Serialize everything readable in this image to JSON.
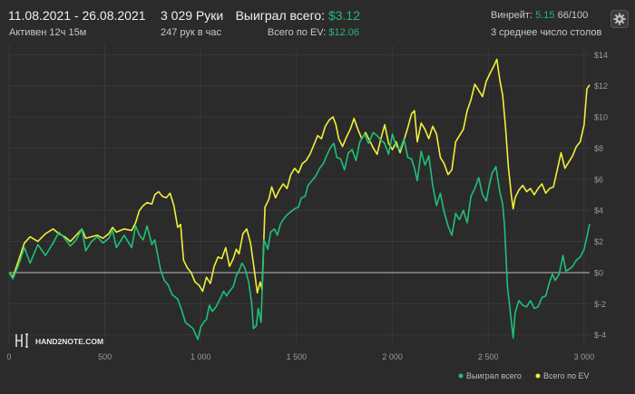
{
  "header": {
    "date_range": "11.08.2021 - 26.08.2021",
    "active_time": "Активен 12ч 15м",
    "hands": "3 029 Руки",
    "hands_per_hour": "247 рук в час",
    "won_label": "Выиграл всего:",
    "won_value": "$3.12",
    "ev_label": "Всего по EV:",
    "ev_value": "$12.06",
    "winrate_label": "Винрейт:",
    "winrate_value": "5.15",
    "winrate_hands": "66/100",
    "tables": "3 среднее число столов"
  },
  "settings_icon": "gear-icon",
  "watermark": "HAND2NOTE.COM",
  "colors": {
    "won": "#1fbf78",
    "ev": "#f2ef3a",
    "background": "#2b2b2b",
    "grid": "#3a3a3a",
    "zero_line": "#bdbdbd"
  },
  "chart_data": {
    "type": "line",
    "xlim": [
      0,
      3029
    ],
    "ylim": [
      -4.6,
      14.6
    ],
    "x_ticks": [
      0,
      500,
      1000,
      1500,
      2000,
      2500,
      3000
    ],
    "x_tick_labels": [
      "0",
      "500",
      "1 000",
      "1 500",
      "2 000",
      "2 500",
      "3 000"
    ],
    "y_ticks": [
      -4,
      -2,
      0,
      2,
      4,
      6,
      8,
      10,
      12,
      14
    ],
    "y_tick_labels": [
      "$-4",
      "$-2",
      "$0",
      "$2",
      "$4",
      "$6",
      "$8",
      "$10",
      "$12",
      "$14"
    ],
    "grid": true,
    "legend_position": "bottom-right",
    "series": [
      {
        "name": "Выиграл всего",
        "color": "#1fbf78",
        "points": [
          [
            0,
            0
          ],
          [
            20,
            -0.4
          ],
          [
            50,
            0.5
          ],
          [
            80,
            1.6
          ],
          [
            110,
            0.6
          ],
          [
            150,
            1.8
          ],
          [
            190,
            1.1
          ],
          [
            230,
            1.9
          ],
          [
            260,
            2.6
          ],
          [
            290,
            2.2
          ],
          [
            320,
            1.7
          ],
          [
            350,
            2.1
          ],
          [
            380,
            2.8
          ],
          [
            400,
            1.4
          ],
          [
            430,
            2.0
          ],
          [
            460,
            2.3
          ],
          [
            490,
            1.9
          ],
          [
            520,
            2.2
          ],
          [
            540,
            2.7
          ],
          [
            560,
            1.6
          ],
          [
            600,
            2.4
          ],
          [
            640,
            1.6
          ],
          [
            660,
            3.0
          ],
          [
            680,
            2.4
          ],
          [
            700,
            2.1
          ],
          [
            720,
            3.0
          ],
          [
            745,
            1.8
          ],
          [
            760,
            2.1
          ],
          [
            790,
            0.2
          ],
          [
            810,
            -0.5
          ],
          [
            830,
            -0.8
          ],
          [
            850,
            -1.4
          ],
          [
            880,
            -1.7
          ],
          [
            900,
            -2.4
          ],
          [
            920,
            -3.2
          ],
          [
            940,
            -3.4
          ],
          [
            960,
            -3.6
          ],
          [
            985,
            -4.3
          ],
          [
            1000,
            -3.5
          ],
          [
            1015,
            -3.2
          ],
          [
            1030,
            -3.0
          ],
          [
            1045,
            -2.1
          ],
          [
            1060,
            -2.5
          ],
          [
            1080,
            -2.2
          ],
          [
            1100,
            -1.7
          ],
          [
            1120,
            -1.2
          ],
          [
            1135,
            -1.5
          ],
          [
            1150,
            -1.2
          ],
          [
            1170,
            -0.9
          ],
          [
            1185,
            -0.2
          ],
          [
            1200,
            0.1
          ],
          [
            1215,
            0.6
          ],
          [
            1230,
            0.3
          ],
          [
            1250,
            -0.6
          ],
          [
            1265,
            -1.9
          ],
          [
            1275,
            -3.6
          ],
          [
            1290,
            -3.4
          ],
          [
            1300,
            -2.3
          ],
          [
            1315,
            -3.2
          ],
          [
            1330,
            2.1
          ],
          [
            1350,
            1.5
          ],
          [
            1365,
            2.6
          ],
          [
            1385,
            2.8
          ],
          [
            1400,
            2.4
          ],
          [
            1415,
            3.1
          ],
          [
            1430,
            3.4
          ],
          [
            1450,
            3.7
          ],
          [
            1470,
            3.9
          ],
          [
            1490,
            4.1
          ],
          [
            1510,
            4.2
          ],
          [
            1525,
            4.8
          ],
          [
            1545,
            4.9
          ],
          [
            1560,
            5.6
          ],
          [
            1580,
            5.9
          ],
          [
            1600,
            6.2
          ],
          [
            1620,
            6.7
          ],
          [
            1640,
            7.0
          ],
          [
            1660,
            7.6
          ],
          [
            1680,
            8.1
          ],
          [
            1695,
            8.3
          ],
          [
            1710,
            7.4
          ],
          [
            1730,
            7.3
          ],
          [
            1750,
            6.6
          ],
          [
            1770,
            7.7
          ],
          [
            1790,
            7.9
          ],
          [
            1810,
            7.2
          ],
          [
            1830,
            8.4
          ],
          [
            1855,
            8.9
          ],
          [
            1875,
            8.3
          ],
          [
            1900,
            9.0
          ],
          [
            1920,
            8.8
          ],
          [
            1940,
            8.5
          ],
          [
            1960,
            8.3
          ],
          [
            1980,
            7.6
          ],
          [
            2000,
            8.9
          ],
          [
            2020,
            8.1
          ],
          [
            2040,
            7.9
          ],
          [
            2060,
            8.6
          ],
          [
            2080,
            7.4
          ],
          [
            2100,
            7.3
          ],
          [
            2115,
            6.7
          ],
          [
            2130,
            5.9
          ],
          [
            2150,
            7.8
          ],
          [
            2170,
            6.9
          ],
          [
            2190,
            7.5
          ],
          [
            2210,
            5.6
          ],
          [
            2230,
            4.3
          ],
          [
            2250,
            5.1
          ],
          [
            2270,
            3.9
          ],
          [
            2290,
            3.0
          ],
          [
            2310,
            2.4
          ],
          [
            2330,
            3.8
          ],
          [
            2350,
            3.4
          ],
          [
            2370,
            4.0
          ],
          [
            2390,
            3.2
          ],
          [
            2410,
            4.9
          ],
          [
            2430,
            5.4
          ],
          [
            2450,
            6.1
          ],
          [
            2470,
            5.0
          ],
          [
            2490,
            4.6
          ],
          [
            2505,
            5.6
          ],
          [
            2520,
            6.4
          ],
          [
            2540,
            6.8
          ],
          [
            2560,
            5.2
          ],
          [
            2575,
            4.4
          ],
          [
            2585,
            3.0
          ],
          [
            2600,
            -0.9
          ],
          [
            2615,
            -2.5
          ],
          [
            2630,
            -4.2
          ],
          [
            2640,
            -2.6
          ],
          [
            2660,
            -1.8
          ],
          [
            2680,
            -2.1
          ],
          [
            2700,
            -2.2
          ],
          [
            2720,
            -1.8
          ],
          [
            2740,
            -2.3
          ],
          [
            2760,
            -2.2
          ],
          [
            2780,
            -1.6
          ],
          [
            2800,
            -1.5
          ],
          [
            2820,
            -0.6
          ],
          [
            2835,
            -0.1
          ],
          [
            2850,
            -0.5
          ],
          [
            2870,
            -0.1
          ],
          [
            2890,
            1.1
          ],
          [
            2905,
            0.1
          ],
          [
            2920,
            0.2
          ],
          [
            2940,
            0.4
          ],
          [
            2960,
            0.8
          ],
          [
            2980,
            1.0
          ],
          [
            3000,
            1.5
          ],
          [
            3015,
            2.3
          ],
          [
            3029,
            3.12
          ]
        ]
      },
      {
        "name": "Всего по EV",
        "color": "#f2ef3a",
        "points": [
          [
            0,
            0
          ],
          [
            20,
            -0.3
          ],
          [
            50,
            0.8
          ],
          [
            80,
            1.9
          ],
          [
            110,
            2.3
          ],
          [
            150,
            2.0
          ],
          [
            190,
            2.5
          ],
          [
            230,
            2.8
          ],
          [
            260,
            2.5
          ],
          [
            290,
            2.3
          ],
          [
            320,
            2.0
          ],
          [
            350,
            2.4
          ],
          [
            380,
            2.8
          ],
          [
            400,
            2.2
          ],
          [
            430,
            2.3
          ],
          [
            460,
            2.4
          ],
          [
            490,
            2.2
          ],
          [
            520,
            2.5
          ],
          [
            540,
            2.9
          ],
          [
            560,
            2.6
          ],
          [
            600,
            2.8
          ],
          [
            640,
            2.7
          ],
          [
            660,
            3.2
          ],
          [
            680,
            4.0
          ],
          [
            700,
            4.3
          ],
          [
            720,
            4.5
          ],
          [
            745,
            4.4
          ],
          [
            760,
            5.0
          ],
          [
            780,
            5.2
          ],
          [
            800,
            4.9
          ],
          [
            820,
            4.8
          ],
          [
            840,
            5.1
          ],
          [
            860,
            4.3
          ],
          [
            880,
            2.9
          ],
          [
            895,
            3.1
          ],
          [
            910,
            0.8
          ],
          [
            930,
            0.3
          ],
          [
            950,
            0.0
          ],
          [
            970,
            -0.6
          ],
          [
            990,
            -0.8
          ],
          [
            1010,
            -1.2
          ],
          [
            1030,
            -0.3
          ],
          [
            1050,
            -0.7
          ],
          [
            1070,
            0.4
          ],
          [
            1090,
            1.0
          ],
          [
            1110,
            0.9
          ],
          [
            1130,
            1.6
          ],
          [
            1150,
            0.4
          ],
          [
            1170,
            0.9
          ],
          [
            1185,
            1.5
          ],
          [
            1200,
            1.2
          ],
          [
            1220,
            2.5
          ],
          [
            1240,
            2.8
          ],
          [
            1260,
            1.9
          ],
          [
            1280,
            0.1
          ],
          [
            1295,
            -1.3
          ],
          [
            1310,
            -0.6
          ],
          [
            1320,
            -1.1
          ],
          [
            1335,
            4.2
          ],
          [
            1355,
            4.7
          ],
          [
            1370,
            5.5
          ],
          [
            1390,
            4.8
          ],
          [
            1410,
            5.3
          ],
          [
            1430,
            5.7
          ],
          [
            1450,
            5.4
          ],
          [
            1470,
            6.3
          ],
          [
            1490,
            6.7
          ],
          [
            1510,
            6.4
          ],
          [
            1530,
            7.0
          ],
          [
            1550,
            7.2
          ],
          [
            1570,
            7.6
          ],
          [
            1590,
            8.2
          ],
          [
            1610,
            8.8
          ],
          [
            1630,
            8.6
          ],
          [
            1650,
            9.4
          ],
          [
            1670,
            9.8
          ],
          [
            1690,
            10.0
          ],
          [
            1705,
            9.5
          ],
          [
            1720,
            8.6
          ],
          [
            1740,
            8.1
          ],
          [
            1760,
            8.7
          ],
          [
            1780,
            9.2
          ],
          [
            1800,
            9.9
          ],
          [
            1820,
            9.2
          ],
          [
            1840,
            8.6
          ],
          [
            1860,
            9.0
          ],
          [
            1880,
            8.5
          ],
          [
            1900,
            8.0
          ],
          [
            1920,
            7.6
          ],
          [
            1940,
            8.6
          ],
          [
            1960,
            9.5
          ],
          [
            1980,
            8.3
          ],
          [
            2000,
            7.9
          ],
          [
            2020,
            8.4
          ],
          [
            2040,
            7.7
          ],
          [
            2060,
            8.5
          ],
          [
            2080,
            9.3
          ],
          [
            2100,
            10.2
          ],
          [
            2115,
            10.4
          ],
          [
            2130,
            8.4
          ],
          [
            2150,
            9.6
          ],
          [
            2170,
            9.2
          ],
          [
            2190,
            8.6
          ],
          [
            2210,
            9.4
          ],
          [
            2230,
            8.9
          ],
          [
            2250,
            7.4
          ],
          [
            2270,
            7.0
          ],
          [
            2290,
            6.3
          ],
          [
            2310,
            6.6
          ],
          [
            2330,
            8.4
          ],
          [
            2350,
            8.8
          ],
          [
            2370,
            9.2
          ],
          [
            2390,
            10.4
          ],
          [
            2410,
            11.1
          ],
          [
            2430,
            12.1
          ],
          [
            2450,
            11.7
          ],
          [
            2470,
            11.3
          ],
          [
            2490,
            12.3
          ],
          [
            2510,
            12.8
          ],
          [
            2530,
            13.3
          ],
          [
            2545,
            13.7
          ],
          [
            2560,
            12.4
          ],
          [
            2575,
            11.4
          ],
          [
            2590,
            9.4
          ],
          [
            2605,
            6.8
          ],
          [
            2620,
            5.0
          ],
          [
            2630,
            4.1
          ],
          [
            2640,
            4.8
          ],
          [
            2660,
            5.3
          ],
          [
            2680,
            5.6
          ],
          [
            2700,
            5.2
          ],
          [
            2720,
            5.4
          ],
          [
            2740,
            5.0
          ],
          [
            2760,
            5.4
          ],
          [
            2780,
            5.7
          ],
          [
            2800,
            5.1
          ],
          [
            2820,
            5.4
          ],
          [
            2840,
            5.5
          ],
          [
            2860,
            6.6
          ],
          [
            2880,
            7.7
          ],
          [
            2900,
            6.7
          ],
          [
            2920,
            7.1
          ],
          [
            2940,
            7.5
          ],
          [
            2960,
            8.1
          ],
          [
            2980,
            8.4
          ],
          [
            3000,
            9.5
          ],
          [
            3015,
            11.8
          ],
          [
            3029,
            12.06
          ]
        ]
      }
    ]
  }
}
